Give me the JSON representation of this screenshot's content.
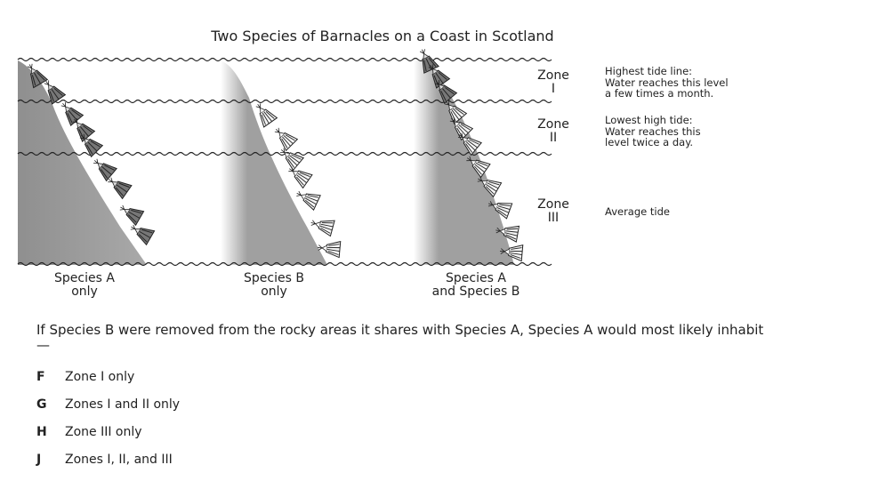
{
  "figure": {
    "title": "Two Species of Barnacles on a Coast in Scotland",
    "zones": [
      {
        "name": "Zone",
        "numeral": "I",
        "note": [
          "Highest tide line:",
          "Water reaches this level",
          "a few times a month."
        ]
      },
      {
        "name": "Zone",
        "numeral": "II",
        "note": [
          "Lowest high tide:",
          "Water reaches this",
          "level twice a day."
        ]
      },
      {
        "name": "Zone",
        "numeral": "III",
        "note": [
          "Average tide"
        ]
      }
    ],
    "columns": [
      {
        "line1": "Species A",
        "line2": "only"
      },
      {
        "line1": "Species B",
        "line2": "only"
      },
      {
        "line1": "Species A",
        "line2": "and Species B"
      }
    ]
  },
  "question": {
    "stem": "If Species B were removed from the rocky areas it shares with Species A, Species A would most likely inhabit —",
    "choices": [
      {
        "letter": "F",
        "text": "Zone I only"
      },
      {
        "letter": "G",
        "text": "Zones I and II only"
      },
      {
        "letter": "H",
        "text": "Zone III only"
      },
      {
        "letter": "J",
        "text": "Zones I, II, and III"
      }
    ]
  }
}
